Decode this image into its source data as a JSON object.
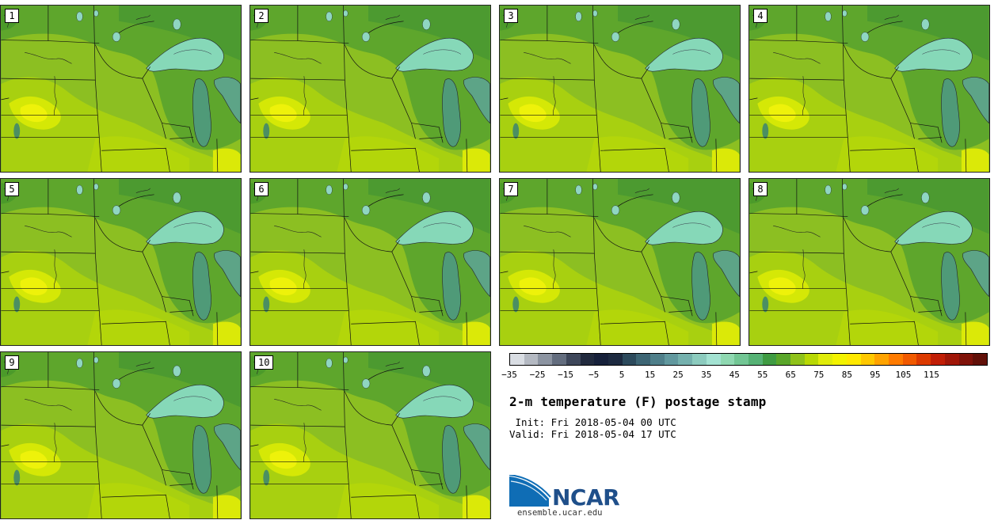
{
  "title": "2-m temperature (F) postage stamp",
  "init": " Init: Fri 2018-05-04 00 UTC",
  "valid": "Valid: Fri 2018-05-04 17 UTC",
  "members": [
    "1",
    "2",
    "3",
    "4",
    "5",
    "6",
    "7",
    "8",
    "9",
    "10"
  ],
  "colorbar": {
    "ticks": [
      "−35",
      "−25",
      "−15",
      "−5",
      "5",
      "15",
      "25",
      "35",
      "45",
      "55",
      "65",
      "75",
      "85",
      "95",
      "105",
      "115"
    ],
    "colors": [
      "#d9dde3",
      "#b4b9c2",
      "#8c94a1",
      "#636d7e",
      "#3e475a",
      "#212a3e",
      "#16203a",
      "#1d2a40",
      "#2c4a5c",
      "#3d6574",
      "#4f7f8a",
      "#61989e",
      "#75b1ae",
      "#8ccbbe",
      "#a3e2d2",
      "#8fd8b1",
      "#72c694",
      "#56b275",
      "#3f9b42",
      "#5aa62a",
      "#8fc21a",
      "#b8d804",
      "#e0ec0a",
      "#f3f300",
      "#ffe900",
      "#ffc800",
      "#ffa300",
      "#ff7b00",
      "#f15a00",
      "#dc3a00",
      "#c11e06",
      "#a01608",
      "#7f1209",
      "#611008"
    ]
  },
  "website": "ensemble.ucar.edu",
  "logo_text": "NCAR",
  "logo_colors": {
    "blue": "#0f6db5",
    "dark": "#1f4f8a"
  }
}
